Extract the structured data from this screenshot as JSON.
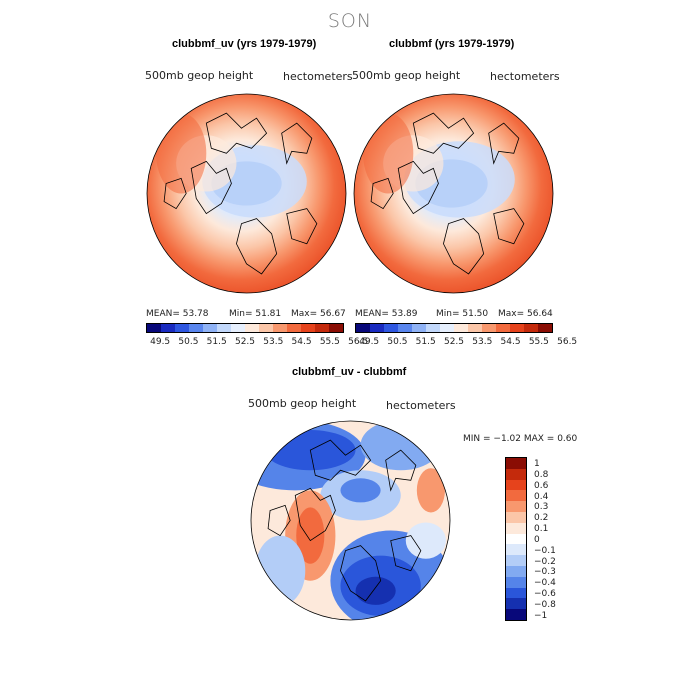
{
  "season": "SON",
  "panels": [
    {
      "title": "clubbmf_uv (yrs 1979-1979)",
      "variable": "500mb geop height",
      "units": "hectometers",
      "mean": "MEAN=  53.78",
      "min": "Min=  51.81",
      "max": "Max=  56.67",
      "colorbar_ticks": [
        "49.5",
        "50.5",
        "51.5",
        "52.5",
        "53.5",
        "54.5",
        "55.5",
        "56.5"
      ]
    },
    {
      "title": "clubbmf (yrs 1979-1979)",
      "variable": "500mb geop height",
      "units": "hectometers",
      "mean": "MEAN=  53.89",
      "min": "Min=  51.50",
      "max": "Max=  56.64",
      "colorbar_ticks": [
        "49.5",
        "50.5",
        "51.5",
        "52.5",
        "53.5",
        "54.5",
        "55.5",
        "56.5"
      ]
    }
  ],
  "diff": {
    "title": "clubbmf_uv - clubbmf",
    "variable": "500mb geop height",
    "units": "hectometers",
    "minmax": "MIN =   −1.02  MAX =    0.60",
    "colorbar_ticks": [
      "1",
      "0.8",
      "0.6",
      "0.4",
      "0.3",
      "0.2",
      "0.1",
      "0",
      "−0.1",
      "−0.2",
      "−0.3",
      "−0.4",
      "−0.6",
      "−0.8",
      "−1"
    ]
  },
  "colors": {
    "seq": [
      "#08087a",
      "#1a2bc0",
      "#2f57e0",
      "#5a86ee",
      "#8fb2f5",
      "#c2d8fb",
      "#e6effd",
      "#fde9db",
      "#fbc6a8",
      "#f8986e",
      "#f26a3e",
      "#e6431c",
      "#c42a0c",
      "#8a0d04"
    ],
    "div": [
      "#8a0d04",
      "#c42a0c",
      "#e6431c",
      "#f26a3e",
      "#f8986e",
      "#fbc6a8",
      "#fde9db",
      "#ffffff",
      "#dde9fb",
      "#b3cdf7",
      "#82aaf1",
      "#5584e9",
      "#2a56da",
      "#1530b0",
      "#08087a"
    ]
  }
}
